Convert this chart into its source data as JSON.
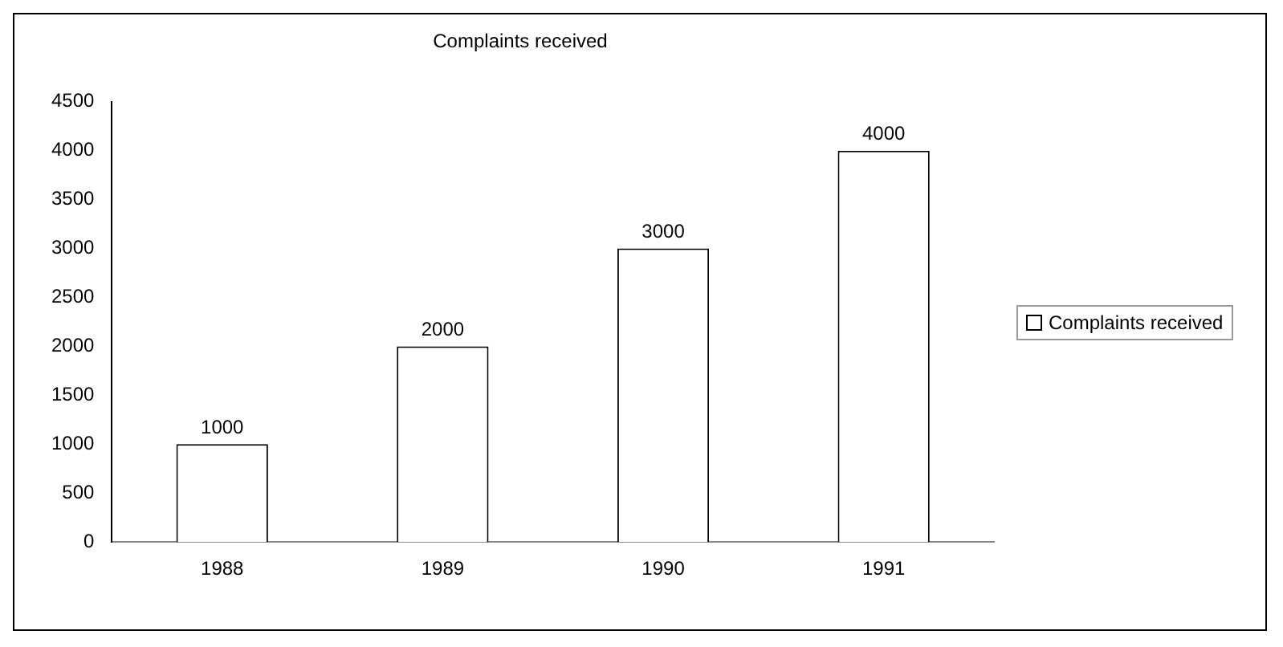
{
  "chart_data": {
    "type": "bar",
    "title": "Complaints received",
    "categories": [
      "1988",
      "1989",
      "1990",
      "1991"
    ],
    "series": [
      {
        "name": "Complaints received",
        "color": "#ffffff",
        "values": [
          1000,
          2000,
          3000,
          4000
        ]
      }
    ],
    "ylim": [
      0,
      4500
    ],
    "yticks": [
      0,
      500,
      1000,
      1500,
      2000,
      2500,
      3000,
      3500,
      4000,
      4500
    ],
    "grid": false,
    "legend": "right",
    "data_labels": true
  }
}
